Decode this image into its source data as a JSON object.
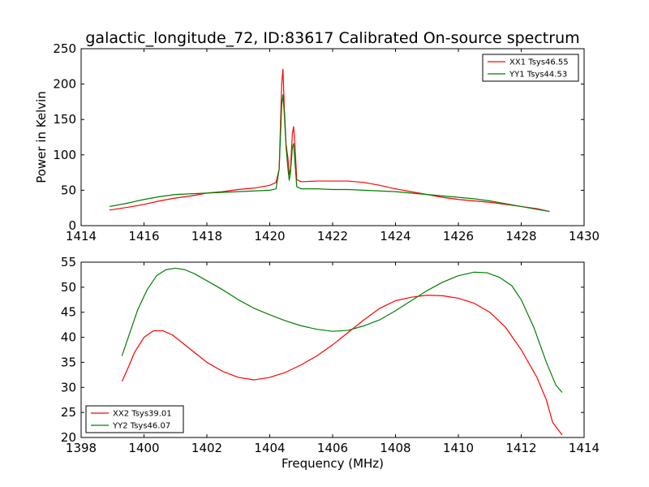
{
  "title": "galactic_longitude_72, ID:83617 Calibrated On-source spectrum",
  "colors": {
    "red": "#ff0000",
    "green": "#007f00"
  },
  "chart_data": [
    {
      "type": "line",
      "ylabel": "Power in Kelvin",
      "xlim": [
        1414,
        1430
      ],
      "ylim": [
        0,
        250
      ],
      "xticks": [
        "1414",
        "1416",
        "1418",
        "1420",
        "1422",
        "1424",
        "1426",
        "1428",
        "1430"
      ],
      "yticks": [
        "0",
        "50",
        "100",
        "150",
        "200",
        "250"
      ],
      "legend_position": "top-right",
      "series": [
        {
          "name": "XX1 Tsys46.55",
          "color": "#ff0000",
          "points": [
            [
              1414.9,
              22
            ],
            [
              1415.5,
              26
            ],
            [
              1416,
              30
            ],
            [
              1416.5,
              35
            ],
            [
              1417,
              39
            ],
            [
              1417.5,
              42
            ],
            [
              1418,
              46
            ],
            [
              1418.5,
              48
            ],
            [
              1419,
              51
            ],
            [
              1419.5,
              53
            ],
            [
              1420,
              57
            ],
            [
              1420.2,
              61
            ],
            [
              1420.3,
              80
            ],
            [
              1420.38,
              200
            ],
            [
              1420.42,
              221
            ],
            [
              1420.46,
              170
            ],
            [
              1420.52,
              115
            ],
            [
              1420.58,
              95
            ],
            [
              1420.62,
              72
            ],
            [
              1420.66,
              80
            ],
            [
              1420.72,
              130
            ],
            [
              1420.76,
              140
            ],
            [
              1420.8,
              115
            ],
            [
              1420.86,
              65
            ],
            [
              1421,
              62
            ],
            [
              1421.5,
              63
            ],
            [
              1422,
              63
            ],
            [
              1422.5,
              63
            ],
            [
              1423,
              61
            ],
            [
              1423.5,
              57
            ],
            [
              1424,
              52
            ],
            [
              1424.5,
              48
            ],
            [
              1425,
              44
            ],
            [
              1425.5,
              40
            ],
            [
              1426,
              37
            ],
            [
              1426.5,
              35
            ],
            [
              1427,
              33
            ],
            [
              1427.5,
              30
            ],
            [
              1428,
              27
            ],
            [
              1428.5,
              24
            ],
            [
              1428.9,
              20
            ]
          ]
        },
        {
          "name": "YY1 Tsys44.53",
          "color": "#007f00",
          "points": [
            [
              1414.9,
              27
            ],
            [
              1415.5,
              32
            ],
            [
              1416,
              37
            ],
            [
              1416.5,
              41
            ],
            [
              1417,
              44
            ],
            [
              1417.5,
              45
            ],
            [
              1418,
              46
            ],
            [
              1418.5,
              47
            ],
            [
              1419,
              48
            ],
            [
              1419.5,
              49
            ],
            [
              1420,
              50
            ],
            [
              1420.2,
              52
            ],
            [
              1420.3,
              80
            ],
            [
              1420.38,
              170
            ],
            [
              1420.42,
              185
            ],
            [
              1420.46,
              160
            ],
            [
              1420.52,
              110
            ],
            [
              1420.58,
              80
            ],
            [
              1420.62,
              64
            ],
            [
              1420.66,
              75
            ],
            [
              1420.72,
              110
            ],
            [
              1420.76,
              116
            ],
            [
              1420.8,
              90
            ],
            [
              1420.86,
              55
            ],
            [
              1421,
              52
            ],
            [
              1421.5,
              52
            ],
            [
              1422,
              51
            ],
            [
              1422.5,
              51
            ],
            [
              1423,
              50
            ],
            [
              1423.5,
              49
            ],
            [
              1424,
              48
            ],
            [
              1424.5,
              46
            ],
            [
              1425,
              44
            ],
            [
              1425.5,
              42
            ],
            [
              1426,
              40
            ],
            [
              1426.5,
              38
            ],
            [
              1427,
              35
            ],
            [
              1427.5,
              31
            ],
            [
              1428,
              27
            ],
            [
              1428.5,
              23
            ],
            [
              1428.9,
              20
            ]
          ]
        }
      ]
    },
    {
      "type": "line",
      "xlabel": "Frequency (MHz)",
      "xlim": [
        1398,
        1414
      ],
      "ylim": [
        20,
        55
      ],
      "xticks": [
        "1398",
        "1400",
        "1402",
        "1404",
        "1406",
        "1408",
        "1410",
        "1412",
        "1414"
      ],
      "yticks": [
        "20",
        "25",
        "30",
        "35",
        "40",
        "45",
        "50",
        "55"
      ],
      "legend_position": "bottom-left",
      "series": [
        {
          "name": "XX2 Tsys39.01",
          "color": "#ff0000",
          "points": [
            [
              1399.3,
              31.2
            ],
            [
              1399.5,
              34
            ],
            [
              1399.7,
              37
            ],
            [
              1400,
              40
            ],
            [
              1400.3,
              41.3
            ],
            [
              1400.6,
              41.3
            ],
            [
              1400.9,
              40.5
            ],
            [
              1401.2,
              39
            ],
            [
              1401.5,
              37.5
            ],
            [
              1402,
              35
            ],
            [
              1402.5,
              33.2
            ],
            [
              1403,
              32
            ],
            [
              1403.5,
              31.5
            ],
            [
              1404,
              32
            ],
            [
              1404.5,
              33
            ],
            [
              1405,
              34.5
            ],
            [
              1405.5,
              36.3
            ],
            [
              1406,
              38.5
            ],
            [
              1406.5,
              41
            ],
            [
              1407,
              43.5
            ],
            [
              1407.5,
              45.8
            ],
            [
              1408,
              47.3
            ],
            [
              1408.5,
              48
            ],
            [
              1409,
              48.4
            ],
            [
              1409.5,
              48.3
            ],
            [
              1410,
              47.8
            ],
            [
              1410.5,
              46.8
            ],
            [
              1411,
              45
            ],
            [
              1411.5,
              42
            ],
            [
              1412,
              37.5
            ],
            [
              1412.5,
              32
            ],
            [
              1412.8,
              27.5
            ],
            [
              1413,
              23
            ],
            [
              1413.3,
              20.5
            ]
          ]
        },
        {
          "name": "YY2 Tsys46.07",
          "color": "#007f00",
          "points": [
            [
              1399.3,
              36.3
            ],
            [
              1399.5,
              40
            ],
            [
              1399.8,
              45.5
            ],
            [
              1400.1,
              49.5
            ],
            [
              1400.4,
              52.3
            ],
            [
              1400.7,
              53.5
            ],
            [
              1401,
              53.8
            ],
            [
              1401.3,
              53.5
            ],
            [
              1401.6,
              52.7
            ],
            [
              1402,
              51.3
            ],
            [
              1402.5,
              49.5
            ],
            [
              1403,
              47.5
            ],
            [
              1403.5,
              45.8
            ],
            [
              1404,
              44.5
            ],
            [
              1404.5,
              43.3
            ],
            [
              1405,
              42.3
            ],
            [
              1405.5,
              41.6
            ],
            [
              1406,
              41.2
            ],
            [
              1406.5,
              41.4
            ],
            [
              1407,
              42.3
            ],
            [
              1407.5,
              43.5
            ],
            [
              1408,
              45.3
            ],
            [
              1408.5,
              47.3
            ],
            [
              1409,
              49.3
            ],
            [
              1409.5,
              51
            ],
            [
              1410,
              52.3
            ],
            [
              1410.5,
              53
            ],
            [
              1410.9,
              52.9
            ],
            [
              1411.3,
              52
            ],
            [
              1411.7,
              50.3
            ],
            [
              1412,
              47.5
            ],
            [
              1412.4,
              42
            ],
            [
              1412.8,
              35
            ],
            [
              1413.1,
              30.5
            ],
            [
              1413.3,
              29
            ]
          ]
        }
      ]
    }
  ]
}
